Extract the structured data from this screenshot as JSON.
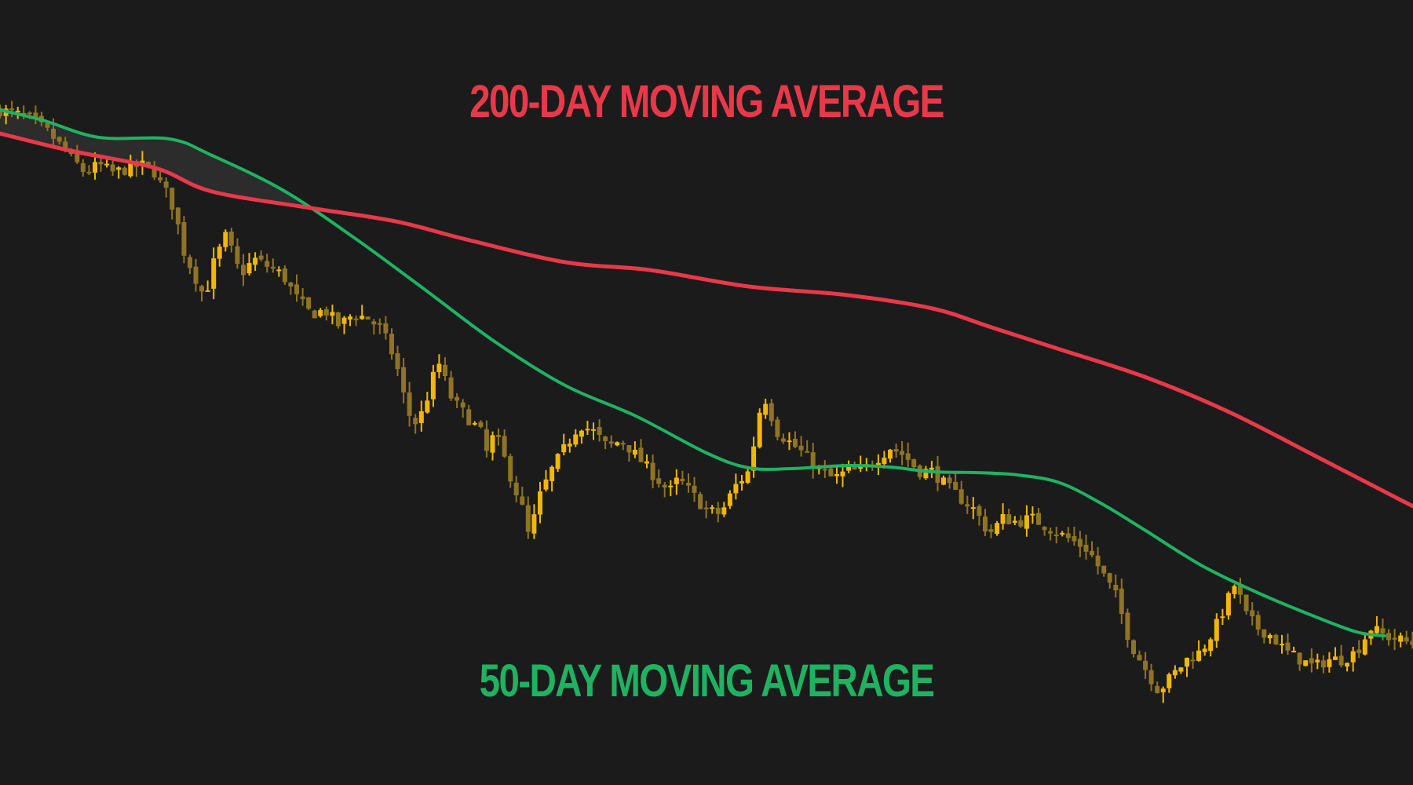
{
  "labels": {
    "ma200": "200-DAY MOVING AVERAGE",
    "ma50": "50-DAY MOVING AVERAGE"
  },
  "colors": {
    "background": "#1b1b1b",
    "ma200": "#e8394a",
    "ma50": "#1fb262",
    "candle_body": "#f2b705",
    "candle_faded": "#8f7424",
    "cloud_fill": "#2c2c2c"
  },
  "chart_data": {
    "type": "line",
    "title": "",
    "xlabel": "",
    "ylabel": "",
    "grid": false,
    "axes_visible": false,
    "ylim": [
      0,
      100
    ],
    "xlim": [
      0,
      100
    ],
    "series": [
      {
        "name": "200-DAY MOVING AVERAGE",
        "color": "#e8394a",
        "points": [
          [
            0,
            83
          ],
          [
            5,
            80.8
          ],
          [
            11,
            78.6
          ],
          [
            15,
            75.6
          ],
          [
            22,
            73.5
          ],
          [
            28,
            71.8
          ],
          [
            33,
            69.5
          ],
          [
            40,
            66.6
          ],
          [
            46,
            65.6
          ],
          [
            53,
            63.5
          ],
          [
            60,
            62.4
          ],
          [
            66,
            60.7
          ],
          [
            70,
            58.4
          ],
          [
            75,
            55.5
          ],
          [
            81,
            52
          ],
          [
            87,
            47.5
          ],
          [
            93,
            42
          ],
          [
            100,
            35.5
          ]
        ]
      },
      {
        "name": "50-DAY MOVING AVERAGE",
        "color": "#1fb262",
        "points": [
          [
            0,
            86
          ],
          [
            3,
            84.7
          ],
          [
            7,
            82.5
          ],
          [
            12,
            82.3
          ],
          [
            15,
            80.2
          ],
          [
            20,
            75.8
          ],
          [
            25,
            69.8
          ],
          [
            30,
            63.2
          ],
          [
            35,
            56.5
          ],
          [
            40,
            50.9
          ],
          [
            45,
            47
          ],
          [
            50,
            42.3
          ],
          [
            53,
            40.4
          ],
          [
            56,
            40.3
          ],
          [
            60,
            40.7
          ],
          [
            63,
            40.5
          ],
          [
            66,
            39.9
          ],
          [
            69,
            39.8
          ],
          [
            72,
            39.5
          ],
          [
            75,
            38.5
          ],
          [
            78,
            35.8
          ],
          [
            81,
            32.5
          ],
          [
            85,
            28
          ],
          [
            89,
            24.5
          ],
          [
            93,
            21.5
          ],
          [
            96,
            19.5
          ],
          [
            98,
            19
          ]
        ]
      },
      {
        "name": "",
        "type": "candlestick",
        "color": "#f2b705",
        "close_path": [
          [
            0,
            86
          ],
          [
            2,
            85
          ],
          [
            3.5,
            83
          ],
          [
            5,
            80
          ],
          [
            6,
            78
          ],
          [
            7,
            79
          ],
          [
            8,
            78
          ],
          [
            10,
            79
          ],
          [
            11,
            78
          ],
          [
            11.5,
            76
          ],
          [
            12,
            75
          ],
          [
            12.5,
            72
          ],
          [
            13,
            68
          ],
          [
            14,
            64
          ],
          [
            14.5,
            62
          ],
          [
            15,
            66
          ],
          [
            15.5,
            68
          ],
          [
            16,
            70
          ],
          [
            17,
            65
          ],
          [
            18,
            67
          ],
          [
            19,
            66
          ],
          [
            20,
            65
          ],
          [
            21,
            62
          ],
          [
            22,
            60
          ],
          [
            23,
            60.5
          ],
          [
            24,
            58.5
          ],
          [
            25,
            60
          ],
          [
            26,
            59.5
          ],
          [
            27,
            58
          ],
          [
            28,
            54
          ],
          [
            28.5,
            50
          ],
          [
            29,
            47
          ],
          [
            29.5,
            46
          ],
          [
            30,
            48
          ],
          [
            31,
            54
          ],
          [
            32,
            49
          ],
          [
            33,
            47
          ],
          [
            34,
            45
          ],
          [
            34.5,
            42
          ],
          [
            35,
            45
          ],
          [
            36,
            40
          ],
          [
            37,
            35
          ],
          [
            37.5,
            31
          ],
          [
            38,
            36
          ],
          [
            39,
            40
          ],
          [
            40,
            43
          ],
          [
            41,
            46
          ],
          [
            42,
            45
          ],
          [
            43,
            43
          ],
          [
            44,
            44
          ],
          [
            45,
            42
          ],
          [
            46,
            40
          ],
          [
            47,
            38
          ],
          [
            47.5,
            37.5
          ],
          [
            48,
            39
          ],
          [
            49,
            37
          ],
          [
            50,
            35
          ],
          [
            51,
            34.5
          ],
          [
            52,
            38
          ],
          [
            53,
            40
          ],
          [
            54,
            50
          ],
          [
            55,
            45
          ],
          [
            56,
            43.5
          ],
          [
            57,
            42
          ],
          [
            58,
            40
          ],
          [
            59,
            39
          ],
          [
            60,
            40
          ],
          [
            61,
            40
          ],
          [
            62,
            41.5
          ],
          [
            63,
            43
          ],
          [
            64,
            42
          ],
          [
            65,
            40
          ],
          [
            66,
            40
          ],
          [
            67,
            38
          ],
          [
            68,
            36.5
          ],
          [
            69,
            35
          ],
          [
            70,
            32
          ],
          [
            71,
            34
          ],
          [
            72,
            33.5
          ],
          [
            73,
            34
          ],
          [
            74,
            33
          ],
          [
            75,
            32
          ],
          [
            76,
            31
          ],
          [
            77,
            30
          ],
          [
            78,
            27
          ],
          [
            79,
            24
          ],
          [
            80,
            18
          ],
          [
            81,
            15
          ],
          [
            82,
            12
          ],
          [
            83,
            14
          ],
          [
            84,
            16
          ],
          [
            85,
            17
          ],
          [
            86,
            20
          ],
          [
            87,
            24
          ],
          [
            87.5,
            26
          ],
          [
            88,
            22
          ],
          [
            89,
            20
          ],
          [
            90,
            19
          ],
          [
            91,
            17
          ],
          [
            92,
            16
          ],
          [
            93,
            15
          ],
          [
            94,
            16
          ],
          [
            95,
            16
          ],
          [
            96,
            17
          ],
          [
            97,
            20
          ],
          [
            98,
            19
          ],
          [
            99,
            18.5
          ],
          [
            100,
            18
          ]
        ]
      }
    ]
  }
}
